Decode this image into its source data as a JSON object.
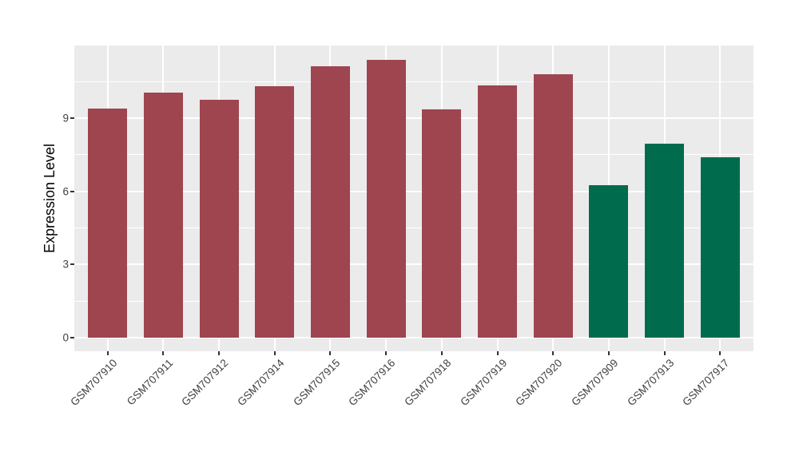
{
  "chart_data": {
    "type": "bar",
    "title": "",
    "xlabel": "",
    "ylabel": "Expression Level",
    "categories": [
      "GSM707910",
      "GSM707911",
      "GSM707912",
      "GSM707914",
      "GSM707915",
      "GSM707916",
      "GSM707918",
      "GSM707919",
      "GSM707920",
      "GSM707909",
      "GSM707913",
      "GSM707917"
    ],
    "values": [
      9.4,
      10.05,
      9.75,
      10.3,
      11.15,
      11.4,
      9.35,
      10.35,
      10.8,
      6.25,
      7.95,
      7.4
    ],
    "bar_colors": [
      "#9E4550",
      "#9E4550",
      "#9E4550",
      "#9E4550",
      "#9E4550",
      "#9E4550",
      "#9E4550",
      "#9E4550",
      "#9E4550",
      "#006B4D",
      "#006B4D",
      "#006B4D"
    ],
    "group_colors": {
      "left_group": "#9E4550",
      "right_group": "#006B4D"
    },
    "yticks": [
      0,
      3,
      6,
      9
    ],
    "y_tick_labels": [
      "0",
      "3",
      "6",
      "9"
    ],
    "minor_yticks": [
      1.5,
      4.5,
      7.5,
      10.5
    ],
    "ylim": [
      0,
      12
    ],
    "legend": "none",
    "grid": "on",
    "styles": {
      "panel_bg": "#EBEBEB",
      "grid_color": "#FFFFFF",
      "axis_text_color": "#404040",
      "axis_title_color": "#000000",
      "tick_color": "#333333",
      "background": "#FFFFFF"
    }
  }
}
